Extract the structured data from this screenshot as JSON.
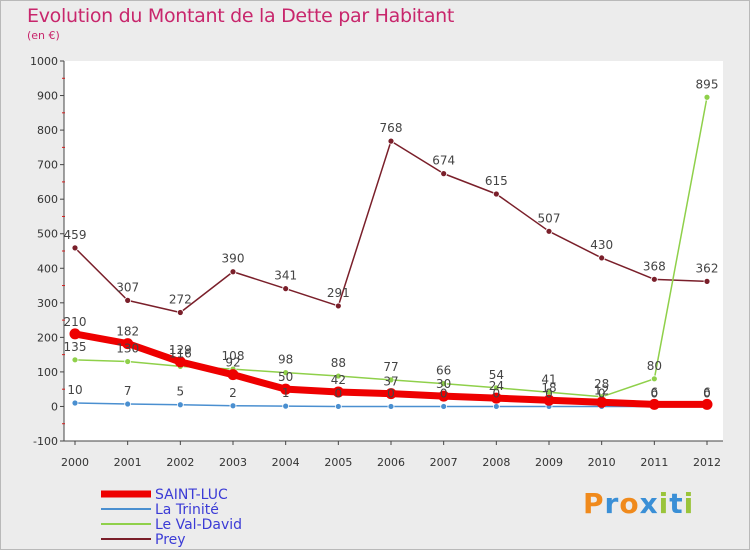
{
  "title": "Evolution du Montant de la Dette par Habitant",
  "subtitle": "(en €)",
  "logo": {
    "text": "Proxiti",
    "colors": [
      "#f08a1c",
      "#3a8fd6",
      "#f08a1c",
      "#3a8fd6",
      "#9ac43a",
      "#3a8fd6",
      "#9ac43a"
    ]
  },
  "chart_data": {
    "type": "line",
    "x": [
      2000,
      2001,
      2002,
      2003,
      2004,
      2005,
      2006,
      2007,
      2008,
      2009,
      2010,
      2011,
      2012
    ],
    "ylim": [
      -100,
      1000
    ],
    "yticks": [
      -100,
      0,
      100,
      200,
      300,
      400,
      500,
      600,
      700,
      800,
      900,
      1000
    ],
    "grid": false,
    "legend_position": "bottom-left",
    "series": [
      {
        "name": "SAINT-LUC",
        "color": "#ee0000",
        "values": [
          210,
          182,
          129,
          92,
          50,
          42,
          37,
          30,
          24,
          18,
          12,
          6,
          6
        ],
        "labels": [
          "210",
          "182",
          "129",
          "92",
          "50",
          "42",
          "37",
          "30",
          "24",
          "18",
          "12",
          "6",
          "6"
        ]
      },
      {
        "name": "La Trinité",
        "color": "#4a8fd0",
        "values": [
          10,
          7,
          5,
          2,
          1,
          0,
          0,
          0,
          0,
          0,
          0,
          0,
          0
        ],
        "labels": [
          "10",
          "7",
          "5",
          "2",
          "1",
          "0",
          "0",
          "0",
          "0",
          "0",
          "0",
          "0",
          "0"
        ]
      },
      {
        "name": "Le Val-David",
        "color": "#8fd04a",
        "values": [
          135,
          130,
          116,
          108,
          98,
          88,
          77,
          66,
          54,
          41,
          28,
          80,
          895
        ],
        "labels": [
          "135",
          "130",
          "116",
          "108",
          "98",
          "88",
          "77",
          "66",
          "54",
          "41",
          "28",
          "80",
          "895"
        ]
      },
      {
        "name": "Prey",
        "color": "#7a1f2a",
        "values": [
          459,
          307,
          272,
          390,
          341,
          291,
          768,
          674,
          615,
          507,
          430,
          368,
          362
        ],
        "labels": [
          "459",
          "307",
          "272",
          "390",
          "341",
          "291",
          "768",
          "674",
          "615",
          "507",
          "430",
          "368",
          "362"
        ]
      }
    ]
  }
}
